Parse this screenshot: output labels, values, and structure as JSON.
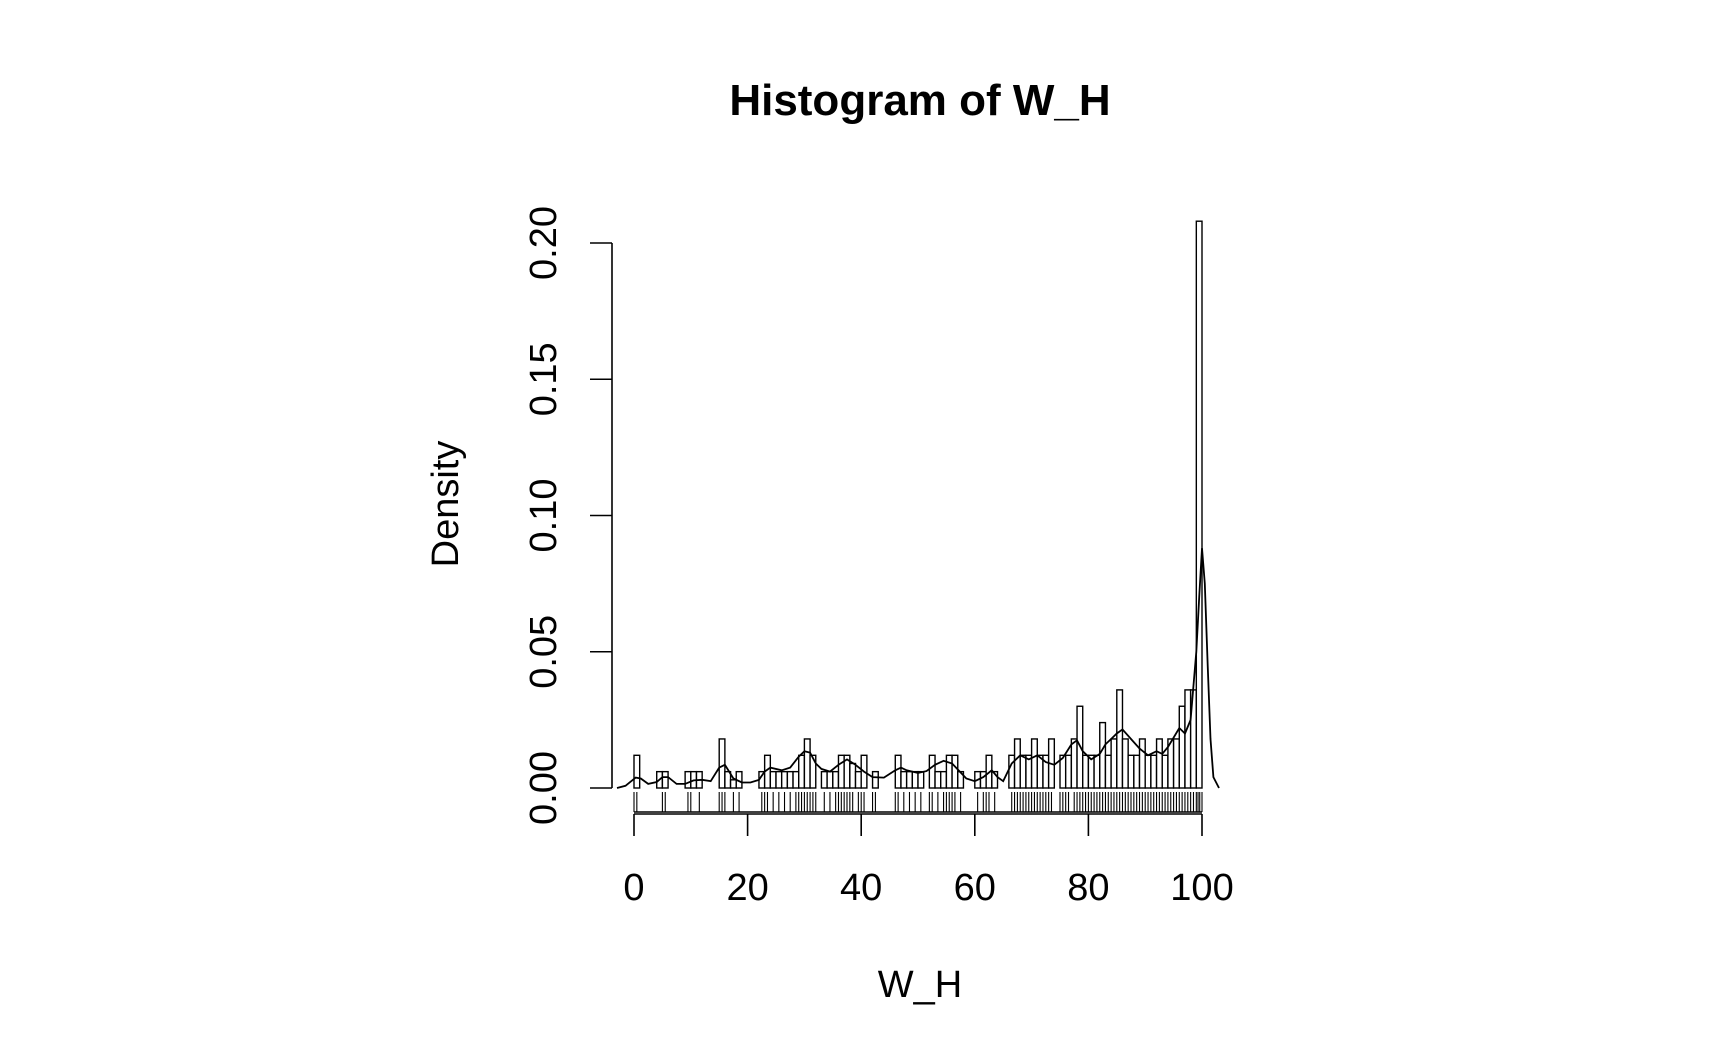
{
  "chart_data": {
    "type": "bar",
    "title": "Histogram of W_H",
    "xlabel": "W_H",
    "ylabel": "Density",
    "xlim": [
      -3,
      103
    ],
    "ylim": [
      0,
      0.2
    ],
    "x_ticks": [
      0,
      20,
      40,
      60,
      80,
      100
    ],
    "x_tick_labels": [
      "0",
      "20",
      "40",
      "60",
      "80",
      "100"
    ],
    "y_ticks": [
      0,
      0.05,
      0.1,
      0.15,
      0.2
    ],
    "y_tick_labels": [
      "0.00",
      "0.05",
      "0.10",
      "0.15",
      "0.20"
    ],
    "grid": false,
    "bin_width": 1,
    "bins_start": [
      0,
      4,
      5,
      9,
      10,
      11,
      15,
      16,
      17,
      18,
      22,
      23,
      24,
      25,
      26,
      27,
      28,
      29,
      30,
      31,
      33,
      34,
      35,
      36,
      37,
      38,
      39,
      40,
      42,
      46,
      47,
      48,
      49,
      50,
      52,
      53,
      54,
      55,
      56,
      57,
      60,
      61,
      62,
      63,
      66,
      67,
      68,
      69,
      70,
      71,
      72,
      73,
      75,
      76,
      77,
      78,
      79,
      80,
      81,
      82,
      83,
      84,
      85,
      86,
      87,
      88,
      89,
      90,
      91,
      92,
      93,
      94,
      95,
      96,
      97,
      98,
      99
    ],
    "density": [
      0.012,
      0.006,
      0.006,
      0.006,
      0.006,
      0.006,
      0.018,
      0.006,
      0.003,
      0.006,
      0.006,
      0.012,
      0.006,
      0.006,
      0.006,
      0.006,
      0.006,
      0.012,
      0.018,
      0.012,
      0.006,
      0.006,
      0.006,
      0.012,
      0.012,
      0.009,
      0.006,
      0.012,
      0.006,
      0.012,
      0.006,
      0.006,
      0.006,
      0.006,
      0.012,
      0.006,
      0.006,
      0.012,
      0.012,
      0.006,
      0.006,
      0.006,
      0.012,
      0.006,
      0.012,
      0.018,
      0.012,
      0.012,
      0.018,
      0.012,
      0.012,
      0.018,
      0.012,
      0.012,
      0.018,
      0.03,
      0.012,
      0.012,
      0.012,
      0.024,
      0.012,
      0.018,
      0.036,
      0.018,
      0.012,
      0.012,
      0.018,
      0.012,
      0.012,
      0.018,
      0.012,
      0.018,
      0.018,
      0.03,
      0.036,
      0.036,
      0.208
    ],
    "density_curve": {
      "x": [
        -3,
        -1.5,
        -0.5,
        0.3,
        1.2,
        2.5,
        4,
        5,
        6,
        7.5,
        9,
        10.5,
        12,
        13.5,
        15,
        16,
        17.5,
        19,
        20.5,
        22,
        23,
        24,
        26,
        27.5,
        29,
        30,
        31,
        32,
        33,
        34.5,
        36,
        37.5,
        39,
        40.5,
        42,
        44,
        46,
        47,
        48,
        50,
        51.5,
        53,
        54.5,
        56,
        57,
        58.5,
        60,
        61.5,
        63,
        64,
        65,
        66.5,
        68,
        69.5,
        71,
        72.5,
        74,
        75.5,
        77,
        78,
        79,
        80.5,
        82,
        83,
        84,
        85,
        86,
        87.5,
        89,
        90.5,
        92,
        93,
        94,
        95,
        96,
        97,
        98,
        99,
        99.5,
        100,
        100.5,
        101,
        101.5,
        102,
        103
      ],
      "y": [
        0,
        0.0008,
        0.0025,
        0.0038,
        0.0035,
        0.0015,
        0.0022,
        0.004,
        0.004,
        0.0015,
        0.0015,
        0.0028,
        0.003,
        0.0025,
        0.0075,
        0.0085,
        0.0035,
        0.002,
        0.002,
        0.003,
        0.006,
        0.0075,
        0.0065,
        0.0075,
        0.0115,
        0.0135,
        0.013,
        0.009,
        0.007,
        0.006,
        0.0085,
        0.0105,
        0.0085,
        0.006,
        0.004,
        0.0038,
        0.0065,
        0.0075,
        0.0065,
        0.0055,
        0.0062,
        0.0085,
        0.01,
        0.009,
        0.0068,
        0.0035,
        0.0025,
        0.004,
        0.0065,
        0.004,
        0.0025,
        0.009,
        0.012,
        0.0105,
        0.012,
        0.0095,
        0.0085,
        0.011,
        0.016,
        0.0175,
        0.0135,
        0.0105,
        0.0125,
        0.016,
        0.018,
        0.02,
        0.0215,
        0.018,
        0.0145,
        0.012,
        0.0135,
        0.0125,
        0.015,
        0.0185,
        0.022,
        0.02,
        0.025,
        0.05,
        0.07,
        0.088,
        0.075,
        0.045,
        0.018,
        0.004,
        0
      ]
    },
    "rug_x": [
      0,
      0.5,
      5,
      5.5,
      9.5,
      10,
      11.5,
      15,
      15.5,
      16,
      17.5,
      18.5,
      22.5,
      23,
      23.5,
      24.5,
      25.5,
      26.5,
      27.5,
      28.5,
      29,
      29.5,
      30,
      30.5,
      31,
      31.5,
      32,
      33.5,
      34.5,
      35.5,
      36,
      36.5,
      37,
      37.5,
      38,
      38.5,
      39.5,
      40,
      40.5,
      42,
      42.5,
      46,
      46.5,
      47.5,
      48.5,
      49.5,
      50.5,
      52,
      52.5,
      53.5,
      54.5,
      55,
      55.5,
      56,
      56.5,
      57.5,
      60.5,
      61.5,
      62,
      62.5,
      63.5,
      66.5,
      67,
      67.5,
      68,
      68.5,
      69,
      69.5,
      70,
      70.5,
      71,
      71.5,
      72,
      72.5,
      73,
      73.5,
      75,
      75.5,
      76,
      76.5,
      77.5,
      78,
      78.5,
      79,
      79.5,
      80,
      80.5,
      81,
      81.5,
      82,
      82.5,
      83,
      83.5,
      84,
      84.5,
      85,
      85.5,
      86,
      86.5,
      87,
      87.5,
      88,
      88.5,
      89,
      89.5,
      90,
      90.5,
      91,
      91.5,
      92,
      92.5,
      93,
      93.5,
      94,
      94.5,
      95,
      95.5,
      96,
      96.5,
      97,
      97.5,
      98,
      98.5,
      99,
      99.3,
      99.6,
      100
    ]
  }
}
